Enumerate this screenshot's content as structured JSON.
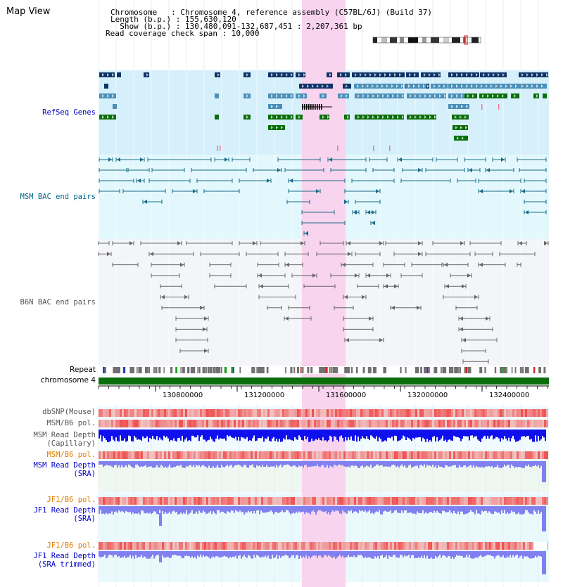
{
  "title": "Map View",
  "info": {
    "chromosome_line": "Chromosome   : Chromosome 4, reference assembly (C57BL/6J) (Build 37)",
    "length_line": "Length (b.p.) : 155,630,120",
    "show_line": "  Show (b.p.) : 130,480,091-132,687,451 : 2,207,361 bp",
    "coverage_line": "Read coverage check span : 10,000"
  },
  "tracks": {
    "refseq": "RefSeq Genes",
    "msm_bac": "MSM BAC end pairs",
    "b6n_bac": "B6N BAC end pairs",
    "repeat": "Repeat",
    "chromosome": "chromosome 4",
    "dbsnp": "dbSNP(Mouse)",
    "msm_b6_pol_1": "MSM/B6 pol.",
    "msm_depth_cap_1": "MSM Read Depth",
    "msm_depth_cap_2": "(Capillary)",
    "msm_b6_pol_2": "MSM/B6 pol.",
    "msm_depth_sra_1": "MSM Read Depth",
    "msm_depth_sra_2": "(SRA)",
    "jf1_b6_pol_1": "JF1/B6 pol.",
    "jf1_depth_sra_1": "JF1 Read Depth",
    "jf1_depth_sra_2": "(SRA)",
    "jf1_b6_pol_2": "JF1/B6 pol.",
    "jf1_depth_trim_1": "JF1 Read Depth",
    "jf1_depth_trim_2": "(SRA trimmed)"
  },
  "axis": {
    "ticks": [
      "130800000",
      "131200000",
      "131600000",
      "132000000",
      "132400000"
    ]
  },
  "colors": {
    "highlight": "#f8d4ee",
    "refseq_bg": "#d6f0fb",
    "msm_bg": "#e2f8fc",
    "b6n_bg": "#f3f5f9",
    "gene_dark": "#0d3366",
    "gene_mid": "#4a8fb8",
    "gene_green": "#0b6e0b",
    "chrom_bar": "#0b6e0b",
    "msm_pair": "#1a6a88",
    "b6n_pair": "#666666",
    "depth_blue": "#1010ee",
    "depth_light": "#8080f0",
    "pol_red": "#e03030"
  }
}
